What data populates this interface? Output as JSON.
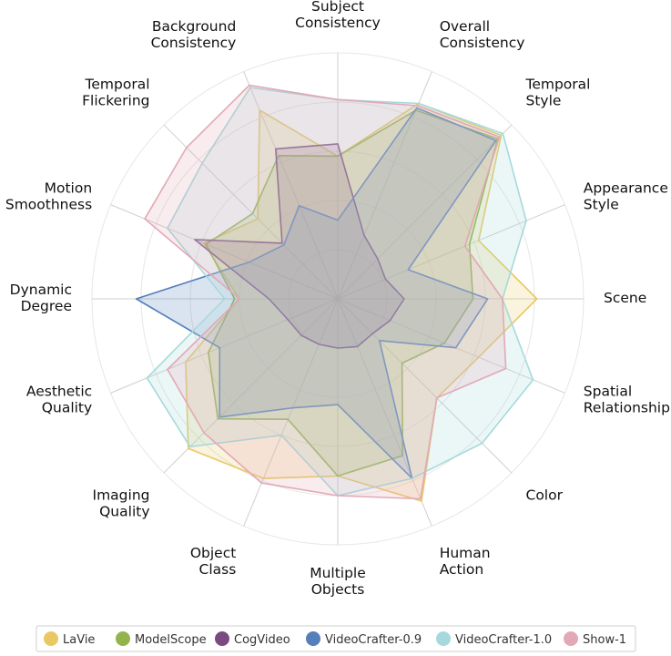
{
  "chart_data": {
    "type": "radar",
    "axes": [
      [
        "Subject",
        "Consistency"
      ],
      [
        "Overall",
        "Consistency"
      ],
      [
        "Temporal",
        "Style"
      ],
      [
        "Appearance",
        "Style"
      ],
      [
        "Scene"
      ],
      [
        "Spatial",
        "Relationship"
      ],
      [
        "Color"
      ],
      [
        "Human",
        "Action"
      ],
      [
        "Multiple",
        "Objects"
      ],
      [
        "Object",
        "Class"
      ],
      [
        "Imaging",
        "Quality"
      ],
      [
        "Aesthetic",
        "Quality"
      ],
      [
        "Dynamic",
        "Degree"
      ],
      [
        "Motion",
        "Smoothness"
      ],
      [
        "Temporal",
        "Flickering"
      ],
      [
        "Background",
        "Consistency"
      ]
    ],
    "rmax": 1,
    "grid_levels": 5,
    "legend_placement": "bottom",
    "series": [
      {
        "name": "LaVie",
        "color": "#e9c864",
        "values": [
          0.58,
          0.86,
          0.94,
          0.62,
          0.81,
          0.62,
          0.57,
          0.89,
          0.72,
          0.79,
          0.86,
          0.67,
          0.4,
          0.59,
          0.46,
          0.83
        ]
      },
      {
        "name": "ModelScope",
        "color": "#93b44c",
        "values": [
          0.58,
          0.83,
          0.92,
          0.58,
          0.55,
          0.47,
          0.37,
          0.69,
          0.72,
          0.53,
          0.69,
          0.57,
          0.42,
          0.58,
          0.49,
          0.63
        ]
      },
      {
        "name": "CogVideo",
        "color": "#7b4a80",
        "values": [
          0.63,
          0.28,
          0.23,
          0.21,
          0.27,
          0.23,
          0.2,
          0.21,
          0.2,
          0.2,
          0.21,
          0.22,
          0.28,
          0.63,
          0.32,
          0.66
        ]
      },
      {
        "name": "VideoCrafter-0.9",
        "color": "#557fba",
        "values": [
          0.32,
          0.84,
          0.91,
          0.31,
          0.61,
          0.52,
          0.24,
          0.79,
          0.43,
          0.48,
          0.68,
          0.52,
          0.82,
          0.39,
          0.31,
          0.41
        ]
      },
      {
        "name": "VideoCrafter-1.0",
        "color": "#a6d9dc",
        "values": [
          0.81,
          0.86,
          0.95,
          0.83,
          0.67,
          0.86,
          0.83,
          0.79,
          0.8,
          0.6,
          0.85,
          0.84,
          0.46,
          0.75,
          0.78,
          0.93
        ]
      },
      {
        "name": "Show-1",
        "color": "#e2a8b5",
        "values": [
          0.81,
          0.85,
          0.93,
          0.56,
          0.67,
          0.74,
          0.57,
          0.88,
          0.8,
          0.81,
          0.77,
          0.75,
          0.4,
          0.85,
          0.87,
          0.94
        ]
      }
    ]
  }
}
